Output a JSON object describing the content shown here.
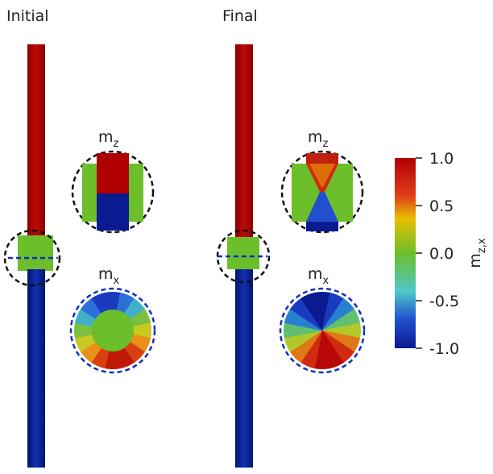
{
  "panels": [
    {
      "title": "Initial",
      "mz_label": {
        "base": "m",
        "sub": "z"
      },
      "mx_label": {
        "base": "m",
        "sub": "x"
      }
    },
    {
      "title": "Final",
      "mz_label": {
        "base": "m",
        "sub": "z"
      },
      "mx_label": {
        "base": "m",
        "sub": "x"
      }
    }
  ],
  "colorbar": {
    "label": {
      "base": "m",
      "sub": "z,x"
    },
    "range": [
      -1,
      1
    ],
    "ticks": [
      {
        "value": 1,
        "label": "1.0"
      },
      {
        "value": 0.5,
        "label": "0.5"
      },
      {
        "value": 0,
        "label": "0.0"
      },
      {
        "value": -0.5,
        "label": "-0.5"
      },
      {
        "value": -1,
        "label": "-1.0"
      }
    ]
  }
}
